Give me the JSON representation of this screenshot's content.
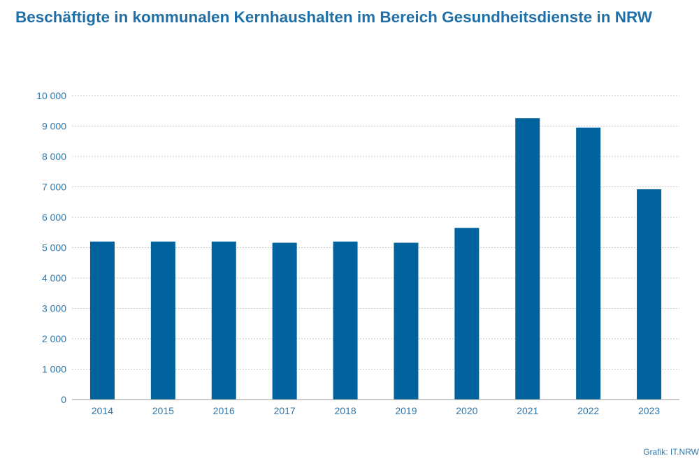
{
  "title": "Beschäftigte in kommunalen Kernhaushalten im Bereich Gesundheitsdienste in NRW",
  "credit": "Grafik: IT.NRW",
  "colors": {
    "bar": "#00639e",
    "text": "#2f78ad",
    "grid": "#c8c8c8",
    "axis": "#9a9a9a"
  },
  "chart_data": {
    "type": "bar",
    "categories": [
      "2014",
      "2015",
      "2016",
      "2017",
      "2018",
      "2019",
      "2020",
      "2021",
      "2022",
      "2023"
    ],
    "values": [
      5200,
      5200,
      5200,
      5160,
      5200,
      5160,
      5650,
      9260,
      8950,
      6920
    ],
    "ylim": [
      0,
      10000
    ],
    "yticks": [
      0,
      1000,
      2000,
      3000,
      4000,
      5000,
      6000,
      7000,
      8000,
      9000,
      10000
    ],
    "ytick_labels": [
      "0",
      "1 000",
      "2 000",
      "3 000",
      "4 000",
      "5 000",
      "6 000",
      "7 000",
      "8 000",
      "9 000",
      "10 000"
    ],
    "grid": true,
    "legend": "none"
  }
}
